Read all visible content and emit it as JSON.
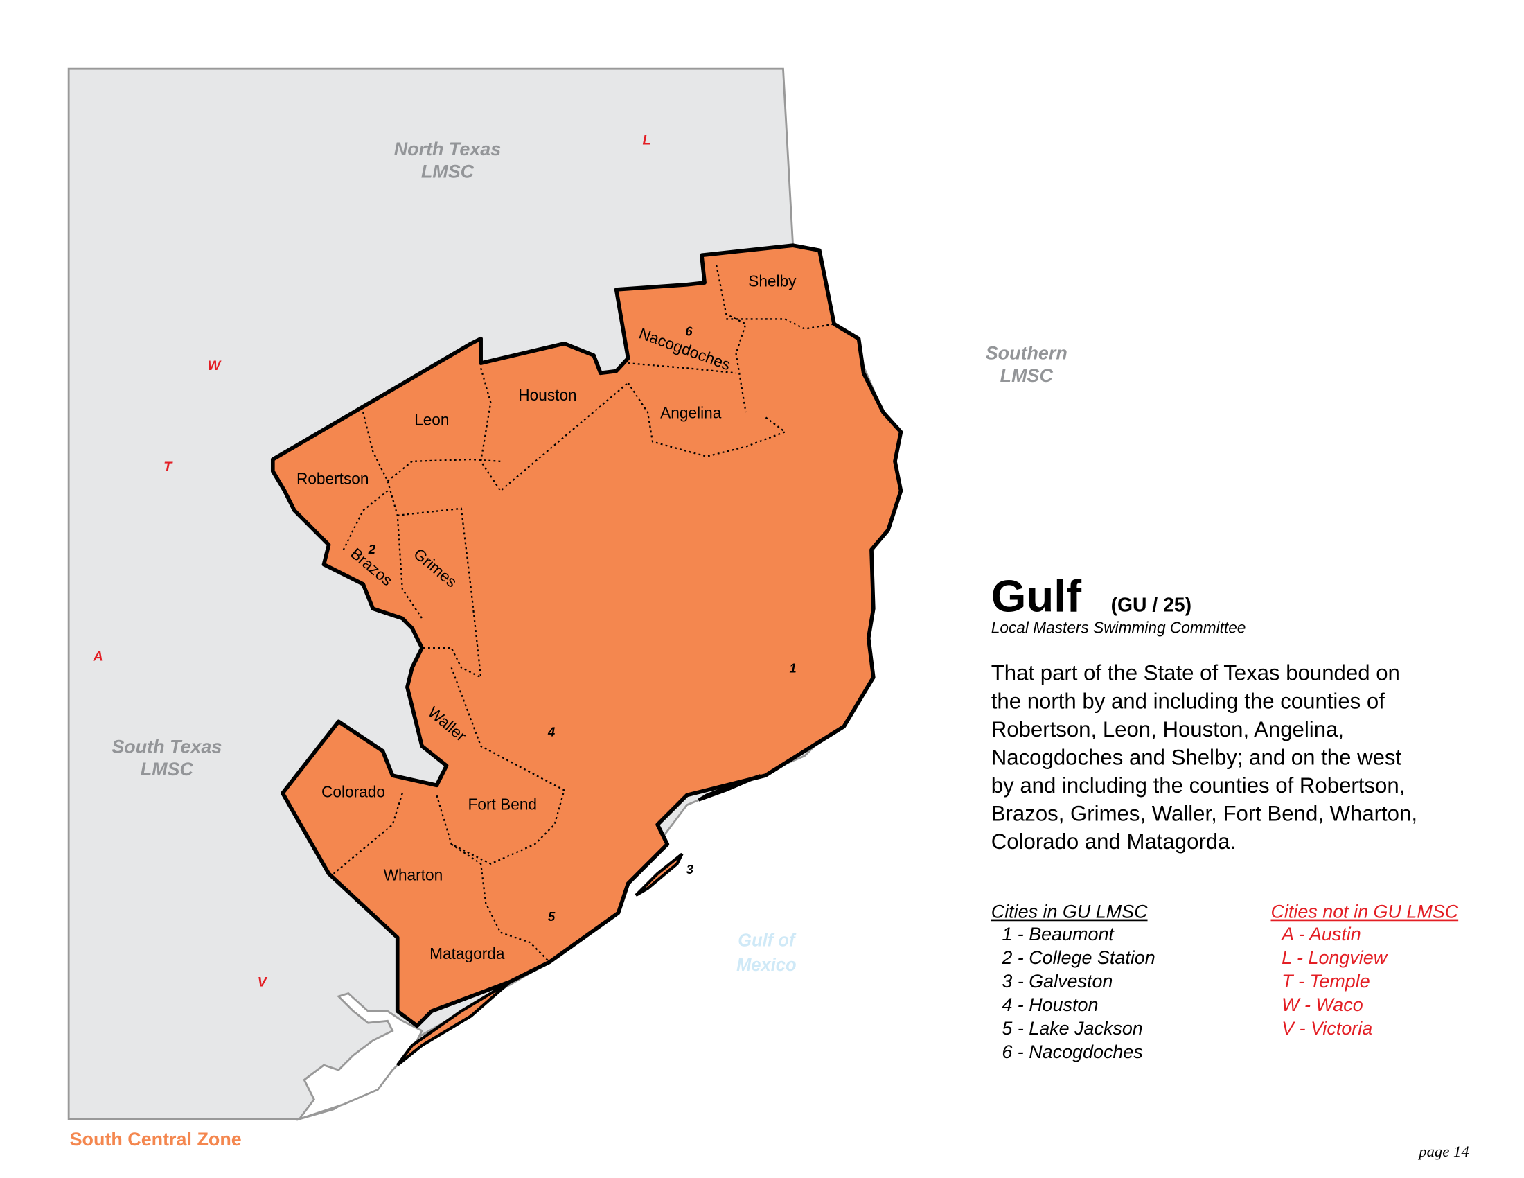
{
  "map": {
    "neighbors": [
      {
        "lines": [
          "North Texas",
          "LMSC"
        ]
      },
      {
        "lines": [
          "Southern",
          "LMSC"
        ]
      },
      {
        "lines": [
          "South Texas",
          "LMSC"
        ]
      }
    ],
    "water": {
      "lines": [
        "Gulf of",
        "Mexico"
      ]
    },
    "counties": [
      "Shelby",
      "Nacogdoches",
      "Angelina",
      "Houston",
      "Leon",
      "Robertson",
      "Brazos",
      "Grimes",
      "Waller",
      "Colorado",
      "Fort Bend",
      "Wharton",
      "Matagorda"
    ],
    "cities_in_markers": [
      "1",
      "2",
      "3",
      "4",
      "5",
      "6"
    ],
    "cities_out_markers": [
      "L",
      "W",
      "T",
      "A",
      "V"
    ],
    "zone": "South Central Zone"
  },
  "header": {
    "title": "Gulf",
    "code": "(GU / 25)",
    "subtitle": "Local Masters Swimming Committee"
  },
  "description": [
    "That part of the State of Texas bounded on",
    "the north by and including the counties of",
    "Robertson, Leon, Houston, Angelina,",
    "Nacogdoches and Shelby; and on the west",
    "by and including the counties of Robertson,",
    "Brazos, Grimes, Waller, Fort Bend, Wharton,",
    "Colorado and Matagorda."
  ],
  "cities_in": {
    "heading": "Cities in GU LMSC",
    "items": [
      "1 - Beaumont",
      "2 - College Station",
      "3 - Galveston",
      "4 - Houston",
      "5 - Lake Jackson",
      "6 - Nacogdoches"
    ]
  },
  "cities_out": {
    "heading": "Cities not in GU LMSC",
    "items": [
      "A - Austin",
      "L - Longview",
      "T - Temple",
      "W - Waco",
      "V - Victoria"
    ]
  },
  "footer": {
    "page": "page 14"
  }
}
